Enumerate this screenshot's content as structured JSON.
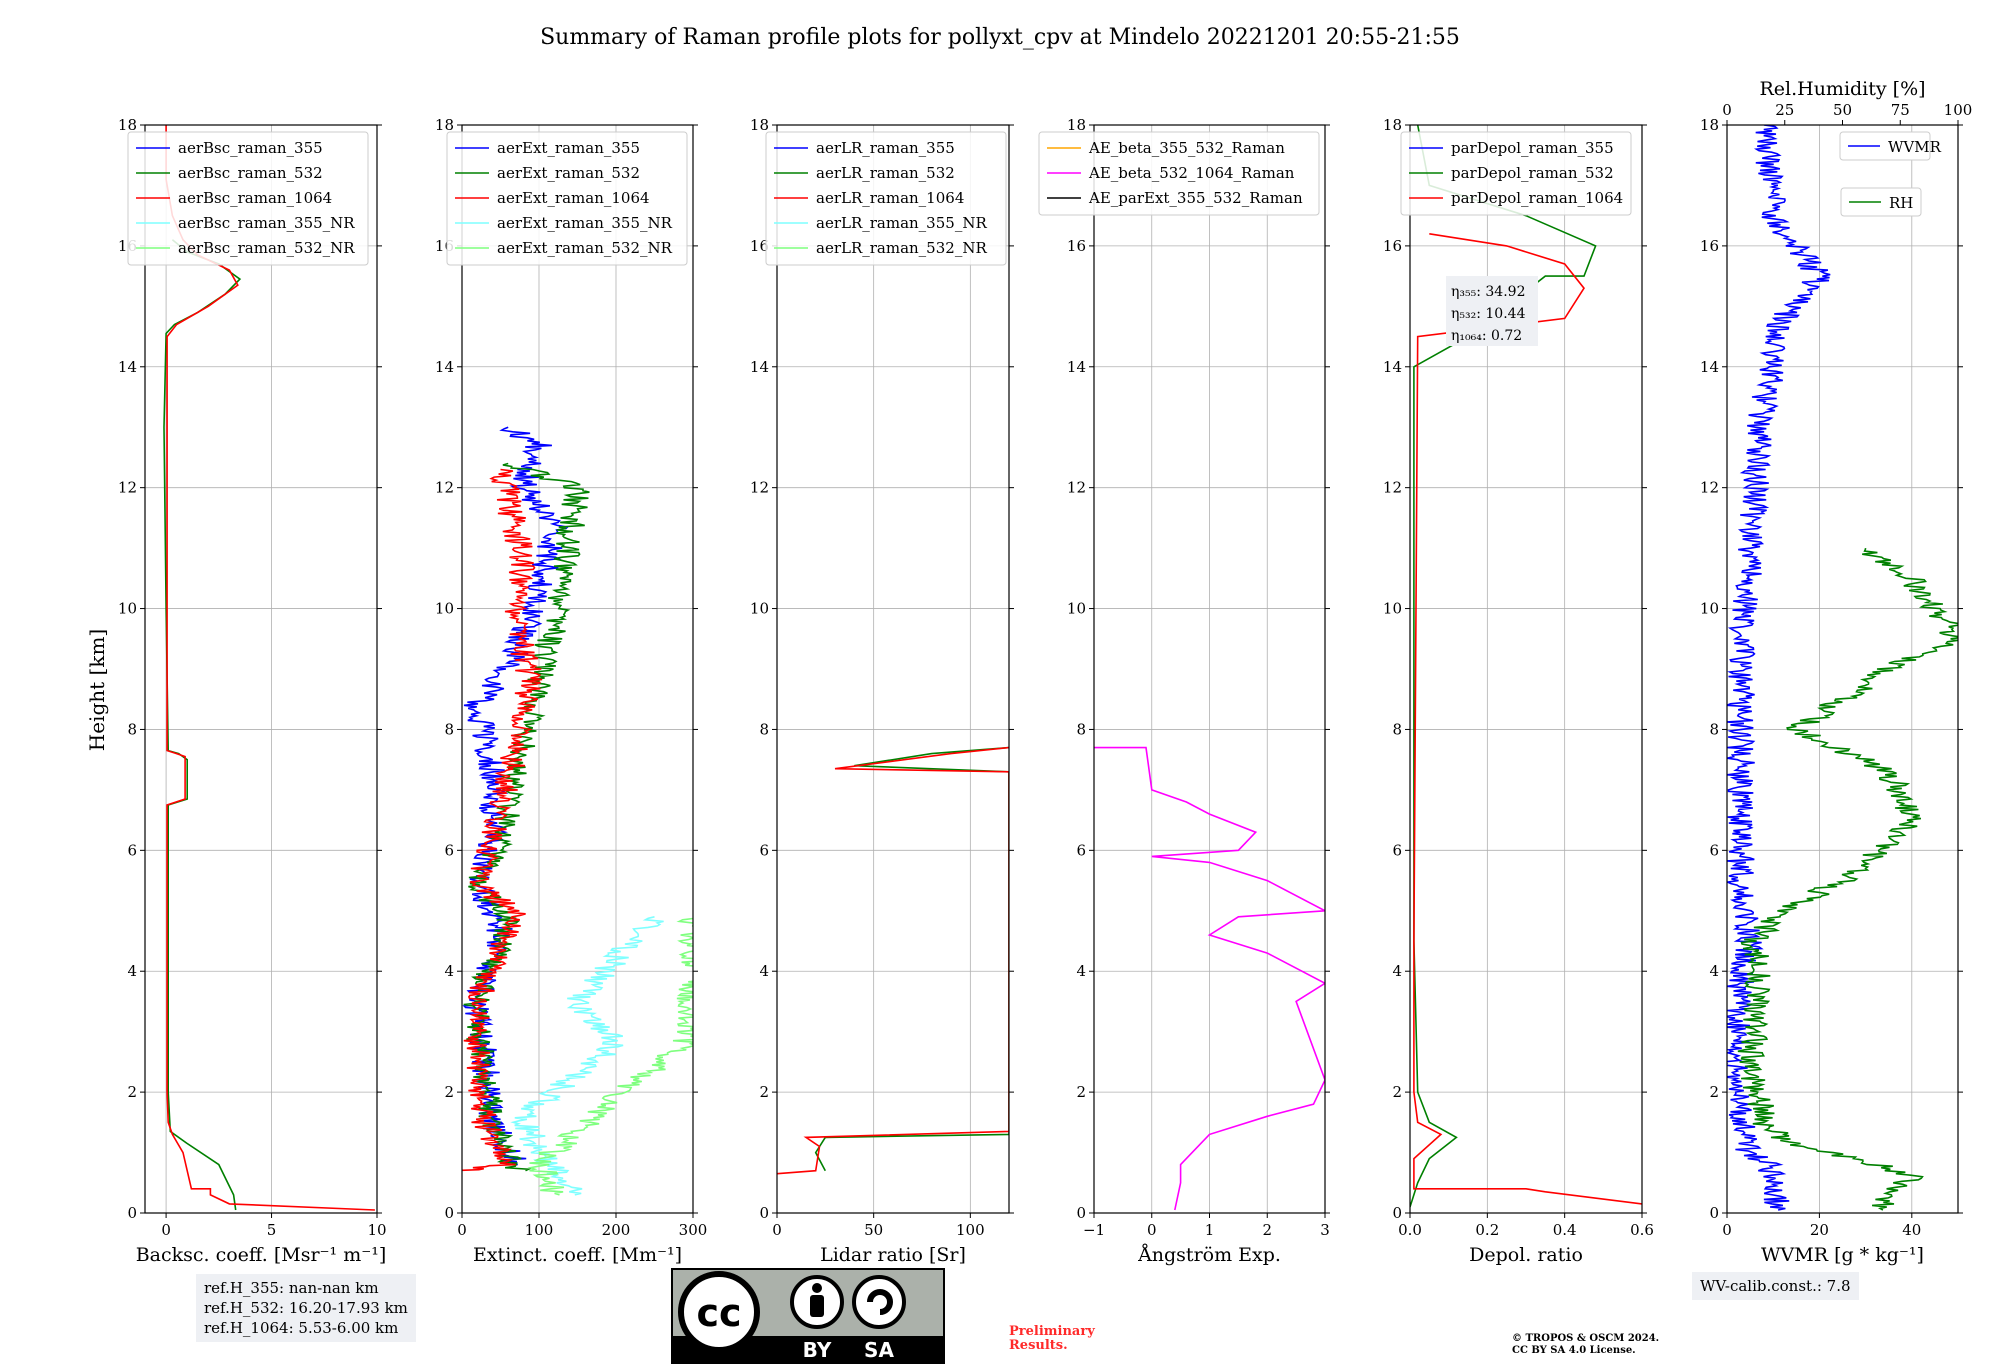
{
  "title": "Summary of Raman profile plots for pollyxt_cpv at Mindelo 20221201 20:55-21:55",
  "y_label": "Height [km]",
  "ref_heights": [
    "ref.H_355: nan-nan km",
    "ref.H_532: 16.20-17.93 km",
    "ref.H_1064: 5.53-6.00 km"
  ],
  "wv_calib": "WV-calib.const.: 7.8",
  "preliminary": [
    "Preliminary",
    "Results."
  ],
  "copyright": [
    "© TROPOS & OSCM 2024.",
    "CC BY SA 4.0 License."
  ],
  "cc_logo": {
    "cc": "cc",
    "by": "BY",
    "sa": "SA"
  },
  "colors": {
    "c355": "#0000ff",
    "c532": "#008000",
    "c1064": "#ff0000",
    "c355nr": "#7fffff",
    "c532nr": "#7fff7f",
    "ae1": "#ffa500",
    "ae2": "#ff00ff",
    "ae3": "#000000",
    "rh": "#008000",
    "wvmr": "#0000ff"
  },
  "chart_data": [
    {
      "type": "line",
      "id": "bsc",
      "xlabel": "Backsc. coeff. [Msr⁻¹ m⁻¹]",
      "xlim": [
        -1,
        10
      ],
      "xticks": [
        "0",
        "5",
        "10"
      ],
      "ylim": [
        0,
        18
      ],
      "yticks": [
        "0",
        "2",
        "4",
        "6",
        "8",
        "10",
        "12",
        "14",
        "16",
        "18"
      ],
      "legend": [
        "aerBsc_raman_355",
        "aerBsc_raman_532",
        "aerBsc_raman_1064",
        "aerBsc_raman_355_NR",
        "aerBsc_raman_532_NR"
      ],
      "series": [
        {
          "name": "aerBsc_raman_532",
          "color": "#008000",
          "points": [
            [
              3.3,
              0.05
            ],
            [
              3.2,
              0.3
            ],
            [
              2.5,
              0.8
            ],
            [
              1.0,
              1.15
            ],
            [
              0.2,
              1.35
            ],
            [
              0.1,
              2
            ],
            [
              0.1,
              6.75
            ],
            [
              1.0,
              6.85
            ],
            [
              1.0,
              7.5
            ],
            [
              0.6,
              7.6
            ],
            [
              0.1,
              7.65
            ],
            [
              0.0,
              10
            ],
            [
              -0.1,
              13
            ],
            [
              0.0,
              14.55
            ],
            [
              0.4,
              14.7
            ],
            [
              1.5,
              14.9
            ],
            [
              2.8,
              15.2
            ],
            [
              3.5,
              15.45
            ],
            [
              2.5,
              15.7
            ],
            [
              1.0,
              15.9
            ],
            [
              0.3,
              16.1
            ]
          ]
        },
        {
          "name": "aerBsc_raman_1064",
          "color": "#ff0000",
          "points": [
            [
              9.9,
              0.05
            ],
            [
              3.0,
              0.15
            ],
            [
              2.1,
              0.3
            ],
            [
              2.1,
              0.4
            ],
            [
              1.2,
              0.4
            ],
            [
              0.8,
              1.0
            ],
            [
              0.3,
              1.3
            ],
            [
              0.1,
              1.5
            ],
            [
              0.05,
              2
            ],
            [
              0.05,
              6.75
            ],
            [
              0.9,
              6.85
            ],
            [
              0.9,
              7.55
            ],
            [
              0.5,
              7.6
            ],
            [
              0.05,
              7.65
            ],
            [
              0.05,
              14.5
            ],
            [
              0.5,
              14.7
            ],
            [
              2.0,
              15.0
            ],
            [
              3.4,
              15.35
            ],
            [
              3.0,
              15.6
            ],
            [
              1.5,
              15.85
            ],
            [
              0.8,
              16.1
            ],
            [
              0.3,
              16.5
            ],
            [
              0.0,
              17.1
            ],
            [
              0.0,
              18
            ]
          ]
        }
      ]
    },
    {
      "type": "line",
      "id": "ext",
      "xlabel": "Extinct. coeff. [Mm⁻¹]",
      "xlim": [
        0,
        300
      ],
      "xticks": [
        "0",
        "100",
        "200",
        "300"
      ],
      "ylim": [
        0,
        18
      ],
      "yticks": [
        "0",
        "2",
        "4",
        "6",
        "8",
        "10",
        "12",
        "14",
        "16",
        "18"
      ],
      "legend": [
        "aerExt_raman_355",
        "aerExt_raman_532",
        "aerExt_raman_1064",
        "aerExt_raman_355_NR",
        "aerExt_raman_532_NR"
      ],
      "series": [
        {
          "name": "aerExt_raman_355",
          "color": "#0000ff",
          "noisy": true,
          "points": [
            [
              70,
              0.8
            ],
            [
              40,
              1.5
            ],
            [
              30,
              2.5
            ],
            [
              20,
              3.5
            ],
            [
              50,
              4.7
            ],
            [
              20,
              5.5
            ],
            [
              40,
              6.2
            ],
            [
              40,
              7.2
            ],
            [
              20,
              8.4
            ],
            [
              60,
              9.0
            ],
            [
              100,
              10.2
            ],
            [
              120,
              11.4
            ],
            [
              80,
              12.0
            ],
            [
              100,
              12.7
            ],
            [
              60,
              13.0
            ]
          ]
        },
        {
          "name": "aerExt_raman_532",
          "color": "#008000",
          "noisy": true,
          "points": [
            [
              70,
              0.7
            ],
            [
              40,
              1.5
            ],
            [
              25,
              2.5
            ],
            [
              20,
              3.5
            ],
            [
              60,
              4.8
            ],
            [
              20,
              5.5
            ],
            [
              50,
              6.2
            ],
            [
              80,
              7.7
            ],
            [
              100,
              8.8
            ],
            [
              120,
              9.8
            ],
            [
              150,
              12.0
            ],
            [
              60,
              12.4
            ]
          ]
        },
        {
          "name": "aerExt_raman_1064",
          "color": "#ff0000",
          "noisy": true,
          "points": [
            [
              0,
              0.7
            ],
            [
              60,
              0.8
            ],
            [
              30,
              1.5
            ],
            [
              20,
              2.5
            ],
            [
              20,
              3.5
            ],
            [
              70,
              4.9
            ],
            [
              20,
              5.5
            ],
            [
              40,
              6.2
            ],
            [
              70,
              7.7
            ],
            [
              90,
              8.8
            ],
            [
              70,
              9.8
            ],
            [
              80,
              10.8
            ],
            [
              50,
              12.3
            ]
          ]
        },
        {
          "name": "aerExt_raman_355_NR",
          "color": "#7fffff",
          "noisy": true,
          "points": [
            [
              150,
              0.3
            ],
            [
              100,
              1.0
            ],
            [
              80,
              1.6
            ],
            [
              200,
              2.8
            ],
            [
              150,
              3.5
            ],
            [
              250,
              4.9
            ]
          ]
        },
        {
          "name": "aerExt_raman_532_NR",
          "color": "#7fff7f",
          "noisy": true,
          "points": [
            [
              120,
              0.3
            ],
            [
              100,
              0.8
            ],
            [
              200,
              1.9
            ],
            [
              290,
              2.8
            ],
            [
              300,
              3.9
            ],
            [
              300,
              4.9
            ]
          ]
        }
      ]
    },
    {
      "type": "line",
      "id": "lr",
      "xlabel": "Lidar ratio [Sr]",
      "xlim": [
        0,
        120
      ],
      "xticks": [
        "0",
        "50",
        "100"
      ],
      "ylim": [
        0,
        18
      ],
      "yticks": [
        "0",
        "2",
        "4",
        "6",
        "8",
        "10",
        "12",
        "14",
        "16",
        "18"
      ],
      "legend": [
        "aerLR_raman_355",
        "aerLR_raman_532",
        "aerLR_raman_1064",
        "aerLR_raman_355_NR",
        "aerLR_raman_532_NR"
      ],
      "series": [
        {
          "name": "aerLR_raman_532",
          "color": "#008000",
          "points": [
            [
              25,
              0.7
            ],
            [
              20,
              1.0
            ],
            [
              25,
              1.25
            ],
            [
              120,
              1.3
            ],
            [
              120,
              7.3
            ],
            [
              40,
              7.4
            ],
            [
              80,
              7.6
            ],
            [
              120,
              7.7
            ]
          ]
        },
        {
          "name": "aerLR_raman_1064",
          "color": "#ff0000",
          "points": [
            [
              0,
              0.65
            ],
            [
              20,
              0.7
            ],
            [
              22,
              1.1
            ],
            [
              15,
              1.25
            ],
            [
              120,
              1.35
            ],
            [
              120,
              7.3
            ],
            [
              30,
              7.35
            ],
            [
              90,
              7.6
            ],
            [
              120,
              7.7
            ]
          ]
        }
      ]
    },
    {
      "type": "line",
      "id": "ang",
      "xlabel": "Ångström Exp.",
      "xlim": [
        -1,
        3
      ],
      "xticks": [
        "−1",
        "0",
        "1",
        "2",
        "3"
      ],
      "ylim": [
        0,
        18
      ],
      "yticks": [
        "0",
        "2",
        "4",
        "6",
        "8",
        "10",
        "12",
        "14",
        "16",
        "18"
      ],
      "legend": [
        "AE_beta_355_532_Raman",
        "AE_beta_532_1064_Raman",
        "AE_parExt_355_532_Raman"
      ],
      "series": [
        {
          "name": "AE_beta_532_1064_Raman",
          "color": "#ff00ff",
          "points": [
            [
              0.4,
              0.05
            ],
            [
              0.5,
              0.5
            ],
            [
              0.5,
              0.8
            ],
            [
              1.0,
              1.3
            ],
            [
              2.0,
              1.6
            ],
            [
              2.8,
              1.8
            ],
            [
              3.0,
              2.2
            ],
            [
              2.5,
              3.5
            ],
            [
              3.0,
              3.8
            ],
            [
              2.0,
              4.3
            ],
            [
              1.0,
              4.6
            ],
            [
              1.5,
              4.9
            ],
            [
              3.0,
              5.0
            ],
            [
              2.0,
              5.5
            ],
            [
              1.0,
              5.8
            ],
            [
              0.0,
              5.9
            ],
            [
              1.5,
              6.0
            ],
            [
              1.8,
              6.3
            ],
            [
              1.0,
              6.6
            ],
            [
              0.6,
              6.8
            ],
            [
              0.0,
              7.0
            ],
            [
              -0.1,
              7.7
            ],
            [
              -1,
              7.7
            ]
          ]
        }
      ]
    },
    {
      "type": "line",
      "id": "depol",
      "xlabel": "Depol. ratio",
      "xlim": [
        0,
        0.6
      ],
      "xticks": [
        "0.0",
        "0.2",
        "0.4",
        "0.6"
      ],
      "ylim": [
        0,
        18
      ],
      "yticks": [
        "0",
        "2",
        "4",
        "6",
        "8",
        "10",
        "12",
        "14",
        "16",
        "18"
      ],
      "legend": [
        "parDepol_raman_355",
        "parDepol_raman_532",
        "parDepol_raman_1064"
      ],
      "annotation": [
        "η₃₅₅: 34.92",
        "η₅₃₂: 10.44",
        "η₁₀₆₄: 0.72"
      ],
      "series": [
        {
          "name": "parDepol_raman_532",
          "color": "#008000",
          "points": [
            [
              0.0,
              0.1
            ],
            [
              0.02,
              0.5
            ],
            [
              0.05,
              0.9
            ],
            [
              0.12,
              1.25
            ],
            [
              0.05,
              1.5
            ],
            [
              0.02,
              2.0
            ],
            [
              0.01,
              4.5
            ],
            [
              0.01,
              14.0
            ],
            [
              0.15,
              14.5
            ],
            [
              0.35,
              15.5
            ],
            [
              0.45,
              15.5
            ],
            [
              0.48,
              16.0
            ],
            [
              0.3,
              16.5
            ],
            [
              0.05,
              17.0
            ],
            [
              0.02,
              18
            ]
          ]
        },
        {
          "name": "parDepol_raman_1064",
          "color": "#ff0000",
          "points": [
            [
              0.6,
              0.15
            ],
            [
              0.35,
              0.35
            ],
            [
              0.3,
              0.4
            ],
            [
              0.01,
              0.4
            ],
            [
              0.01,
              0.9
            ],
            [
              0.08,
              1.3
            ],
            [
              0.02,
              1.5
            ],
            [
              0.01,
              2.0
            ],
            [
              0.01,
              4.5
            ],
            [
              0.02,
              14.5
            ],
            [
              0.4,
              14.8
            ],
            [
              0.45,
              15.3
            ],
            [
              0.4,
              15.7
            ],
            [
              0.25,
              16.0
            ],
            [
              0.05,
              16.2
            ]
          ]
        }
      ]
    },
    {
      "type": "line",
      "id": "wv",
      "xlabel": "WVMR [g * kg⁻¹]",
      "xlim": [
        0,
        50
      ],
      "xticks": [
        "0",
        "20",
        "40"
      ],
      "top_xlabel": "Rel.Humidity [%]",
      "top_xlim": [
        0,
        100
      ],
      "top_xticks": [
        "0",
        "25",
        "50",
        "75",
        "100"
      ],
      "ylim": [
        0,
        18
      ],
      "yticks": [
        "0",
        "2",
        "4",
        "6",
        "8",
        "10",
        "12",
        "14",
        "16",
        "18"
      ],
      "legend": [
        "WVMR",
        "RH"
      ],
      "series": [
        {
          "name": "WVMR",
          "color": "#0000ff",
          "noisy": true,
          "points": [
            [
              11,
              0.05
            ],
            [
              10,
              0.5
            ],
            [
              9,
              0.8
            ],
            [
              5,
              1.0
            ],
            [
              3,
              1.5
            ],
            [
              2,
              2.5
            ],
            [
              3,
              4.0
            ],
            [
              5,
              4.5
            ],
            [
              3,
              5.5
            ],
            [
              3,
              7.0
            ],
            [
              3,
              9.0
            ],
            [
              5,
              11.0
            ],
            [
              7,
              13.0
            ],
            [
              12,
              14.8
            ],
            [
              20,
              15.5
            ],
            [
              10,
              16.5
            ],
            [
              8,
              18
            ]
          ]
        },
        {
          "name": "RH",
          "color": "#008000",
          "noisy": true,
          "points": [
            [
              32,
              0.05
            ],
            [
              40,
              0.6
            ],
            [
              30,
              0.85
            ],
            [
              15,
              1.1
            ],
            [
              8,
              1.5
            ],
            [
              5,
              2.5
            ],
            [
              7,
              3.5
            ],
            [
              6,
              4.5
            ],
            [
              12,
              5.0
            ],
            [
              25,
              5.5
            ],
            [
              40,
              6.5
            ],
            [
              35,
              7.3
            ],
            [
              15,
              8.0
            ],
            [
              35,
              9.0
            ],
            [
              50,
              9.5
            ],
            [
              40,
              10.5
            ],
            [
              30,
              11.0
            ]
          ]
        }
      ]
    }
  ]
}
